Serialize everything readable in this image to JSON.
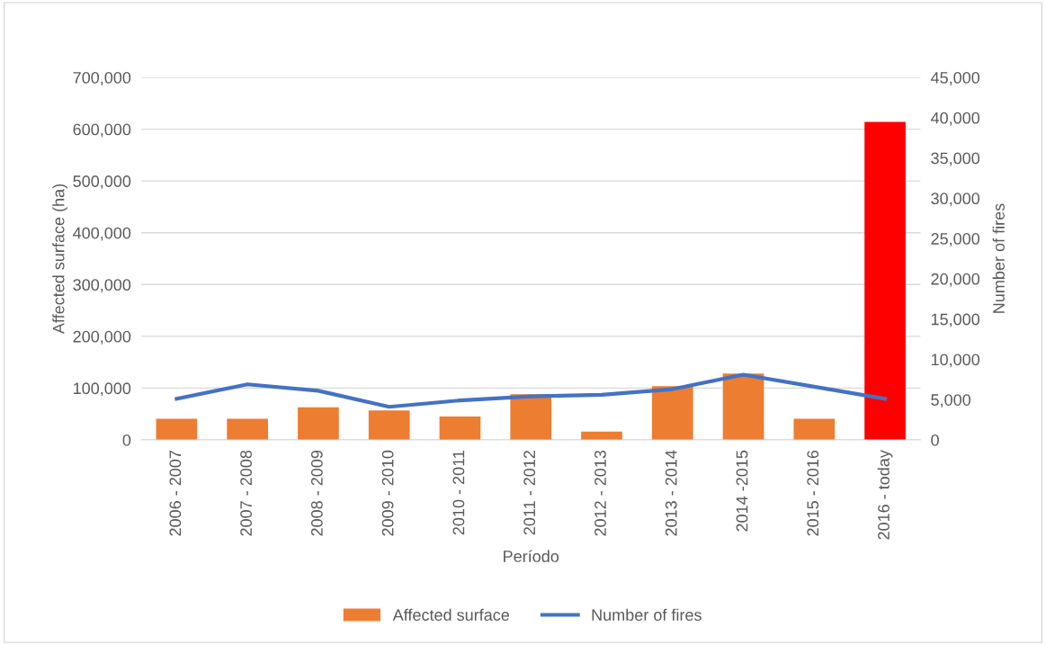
{
  "chart_data": {
    "type": "bar",
    "xlabel": "Período",
    "ylabel": "Affected surface (ha)",
    "y2label": "Number of fires",
    "categories": [
      "2006 - 2007",
      "2007 - 2008",
      "2008 - 2009",
      "2009 - 2010",
      "2010 - 2011",
      "2011 - 2012",
      "2012 - 2013",
      "2013 - 2014",
      "2014 -2015",
      "2015 - 2016",
      "2016 - today"
    ],
    "series": [
      {
        "name": "Affected surface",
        "color": "#ed7d31",
        "colors": [
          "#ed7d31",
          "#ed7d31",
          "#ed7d31",
          "#ed7d31",
          "#ed7d31",
          "#ed7d31",
          "#ed7d31",
          "#ed7d31",
          "#ed7d31",
          "#ed7d31",
          "#ff0000"
        ],
        "values": [
          41000,
          41000,
          63000,
          57000,
          45000,
          88000,
          16000,
          104000,
          128000,
          41000,
          614000
        ]
      },
      {
        "name": "Number of fires",
        "type": "line",
        "axis": "y2",
        "color": "#4472c4",
        "values": [
          5100,
          6900,
          6100,
          4100,
          4900,
          5400,
          5600,
          6300,
          8100,
          6600,
          5100
        ]
      }
    ],
    "ylim": [
      0,
      700000
    ],
    "yticks": [
      {
        "value": 0,
        "label": "0"
      },
      {
        "value": 100000,
        "label": "100,000"
      },
      {
        "value": 200000,
        "label": "200,000"
      },
      {
        "value": 300000,
        "label": "300,000"
      },
      {
        "value": 400000,
        "label": "400,000"
      },
      {
        "value": 500000,
        "label": "500,000"
      },
      {
        "value": 600000,
        "label": "600,000"
      },
      {
        "value": 700000,
        "label": "700,000"
      }
    ],
    "y2lim": [
      0,
      45000
    ],
    "y2ticks": [
      {
        "value": 0,
        "label": "0"
      },
      {
        "value": 5000,
        "label": "5,000"
      },
      {
        "value": 10000,
        "label": "10,000"
      },
      {
        "value": 15000,
        "label": "15,000"
      },
      {
        "value": 20000,
        "label": "20,000"
      },
      {
        "value": 25000,
        "label": "25,000"
      },
      {
        "value": 30000,
        "label": "30,000"
      },
      {
        "value": 35000,
        "label": "35,000"
      },
      {
        "value": 40000,
        "label": "40,000"
      },
      {
        "value": 45000,
        "label": "45,000"
      }
    ],
    "grid": "y",
    "legend": "bottom"
  }
}
